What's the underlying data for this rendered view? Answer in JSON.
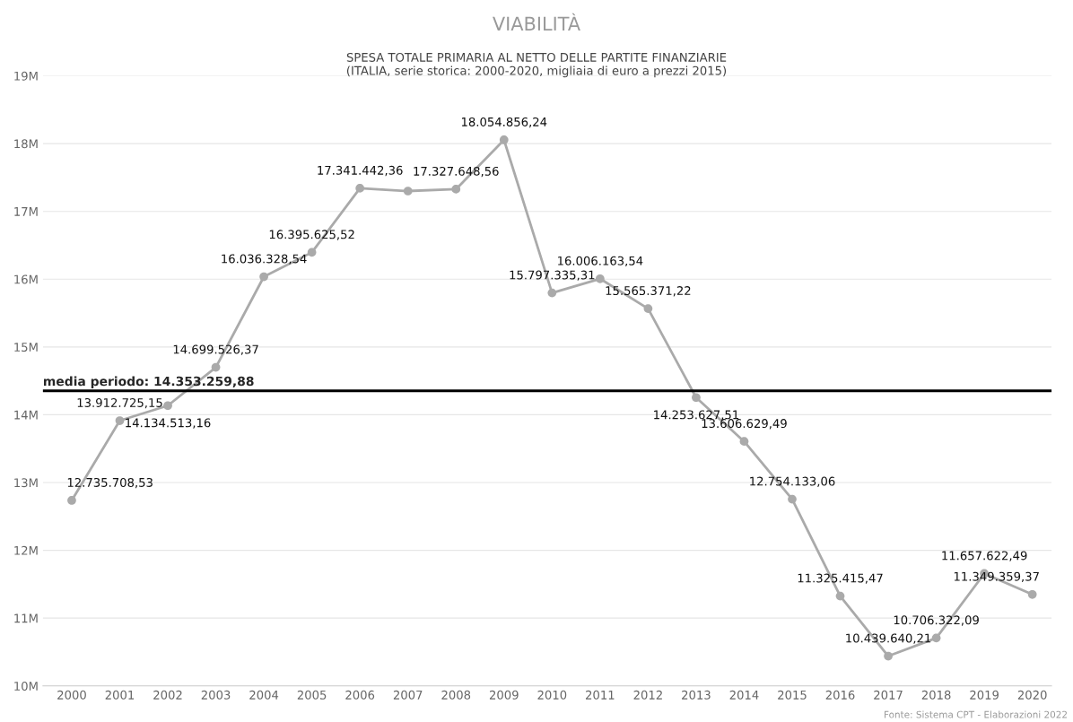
{
  "chart_data": {
    "type": "line",
    "title": "VIABILITÀ",
    "subtitle": "SPESA TOTALE PRIMARIA AL NETTO DELLE PARTITE FINANZIARIE\n(ITALIA, serie storica: 2000-2020, migliaia di euro a prezzi 2015)",
    "categories": [
      "2000",
      "2001",
      "2002",
      "2003",
      "2004",
      "2005",
      "2006",
      "2007",
      "2008",
      "2009",
      "2010",
      "2011",
      "2012",
      "2013",
      "2014",
      "2015",
      "2016",
      "2017",
      "2018",
      "2019",
      "2020"
    ],
    "series": [
      {
        "color": "#aaaaaa",
        "values": [
          12735708.53,
          13912725.15,
          14134513.16,
          14699526.37,
          16036328.54,
          16395625.52,
          17341442.36,
          17300000,
          17327648.56,
          18054856.24,
          15797335.31,
          16006163.54,
          15565371.22,
          14253627.51,
          13606629.49,
          12754133.06,
          11325415.47,
          10439640.21,
          10706322.09,
          11657622.49,
          11349359.37
        ],
        "value_labels": [
          "12.735.708,53",
          "13.912.725,15",
          "14.134.513,16",
          "14.699.526,37",
          "16.036.328,54",
          "16.395.625,52",
          "17.341.442,36",
          null,
          "17.327.648,56",
          "18.054.856,24",
          "15.797.335,31",
          "16.006.163,54",
          "15.565.371,22",
          "14.253.627,51",
          "13.606.629,49",
          "12.754.133,06",
          "11.325.415,47",
          "10.439.640,21",
          "10.706.322,09",
          "11.657.622,49",
          "11.349.359,37"
        ]
      }
    ],
    "ylim": [
      10000000,
      19000000
    ],
    "yticks": [
      {
        "value": 10000000,
        "label": "10M"
      },
      {
        "value": 11000000,
        "label": "11M"
      },
      {
        "value": 12000000,
        "label": "12M"
      },
      {
        "value": 13000000,
        "label": "13M"
      },
      {
        "value": 14000000,
        "label": "14M"
      },
      {
        "value": 15000000,
        "label": "15M"
      },
      {
        "value": 16000000,
        "label": "16M"
      },
      {
        "value": 17000000,
        "label": "17M"
      },
      {
        "value": 18000000,
        "label": "18M"
      },
      {
        "value": 19000000,
        "label": "19M"
      }
    ],
    "ref_lines": [
      {
        "axis": "y",
        "value": 14353259.88,
        "label": "media periodo: 14.353.259,88",
        "color": "#000000"
      }
    ],
    "annotations": [
      "Fonte: Sistema CPT - Elaborazioni 2022"
    ],
    "grid": "y",
    "marker": "circle",
    "line_style": "solid",
    "legend": false
  }
}
